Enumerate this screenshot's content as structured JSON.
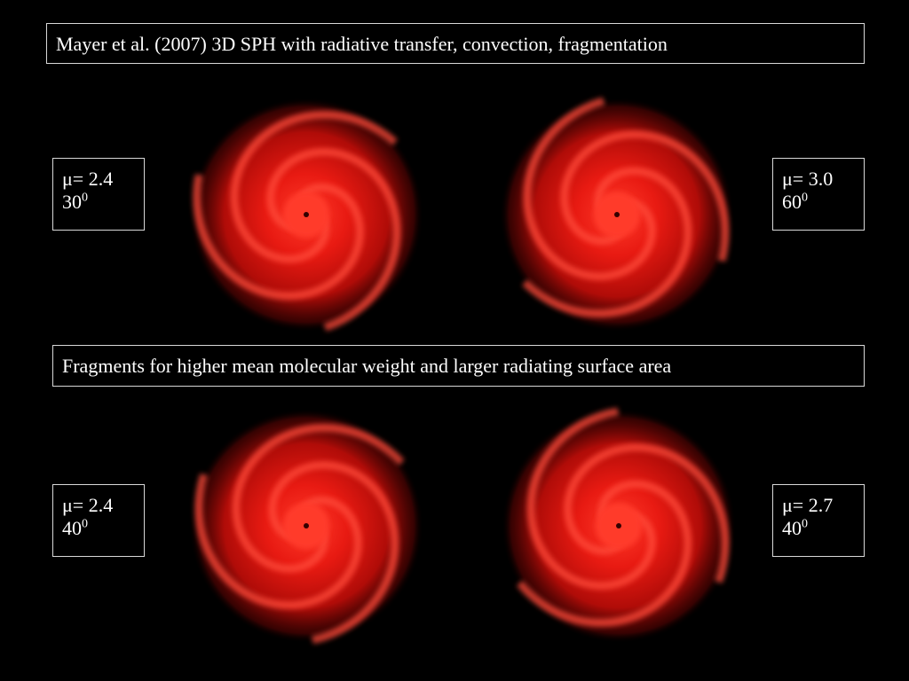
{
  "header": {
    "title": "Mayer et al. (2007) 3D SPH with radiative transfer, convection, fragmentation"
  },
  "caption": "Fragments for higher mean molecular weight and larger radiating surface area",
  "panels": [
    {
      "mu": "μ= 2.4",
      "angle": "30",
      "sup": "0"
    },
    {
      "mu": "μ= 3.0",
      "angle": "60",
      "sup": "0"
    },
    {
      "mu": "μ= 2.4",
      "angle": "40",
      "sup": "0"
    },
    {
      "mu": "μ= 2.7",
      "angle": "40",
      "sup": "0"
    }
  ]
}
